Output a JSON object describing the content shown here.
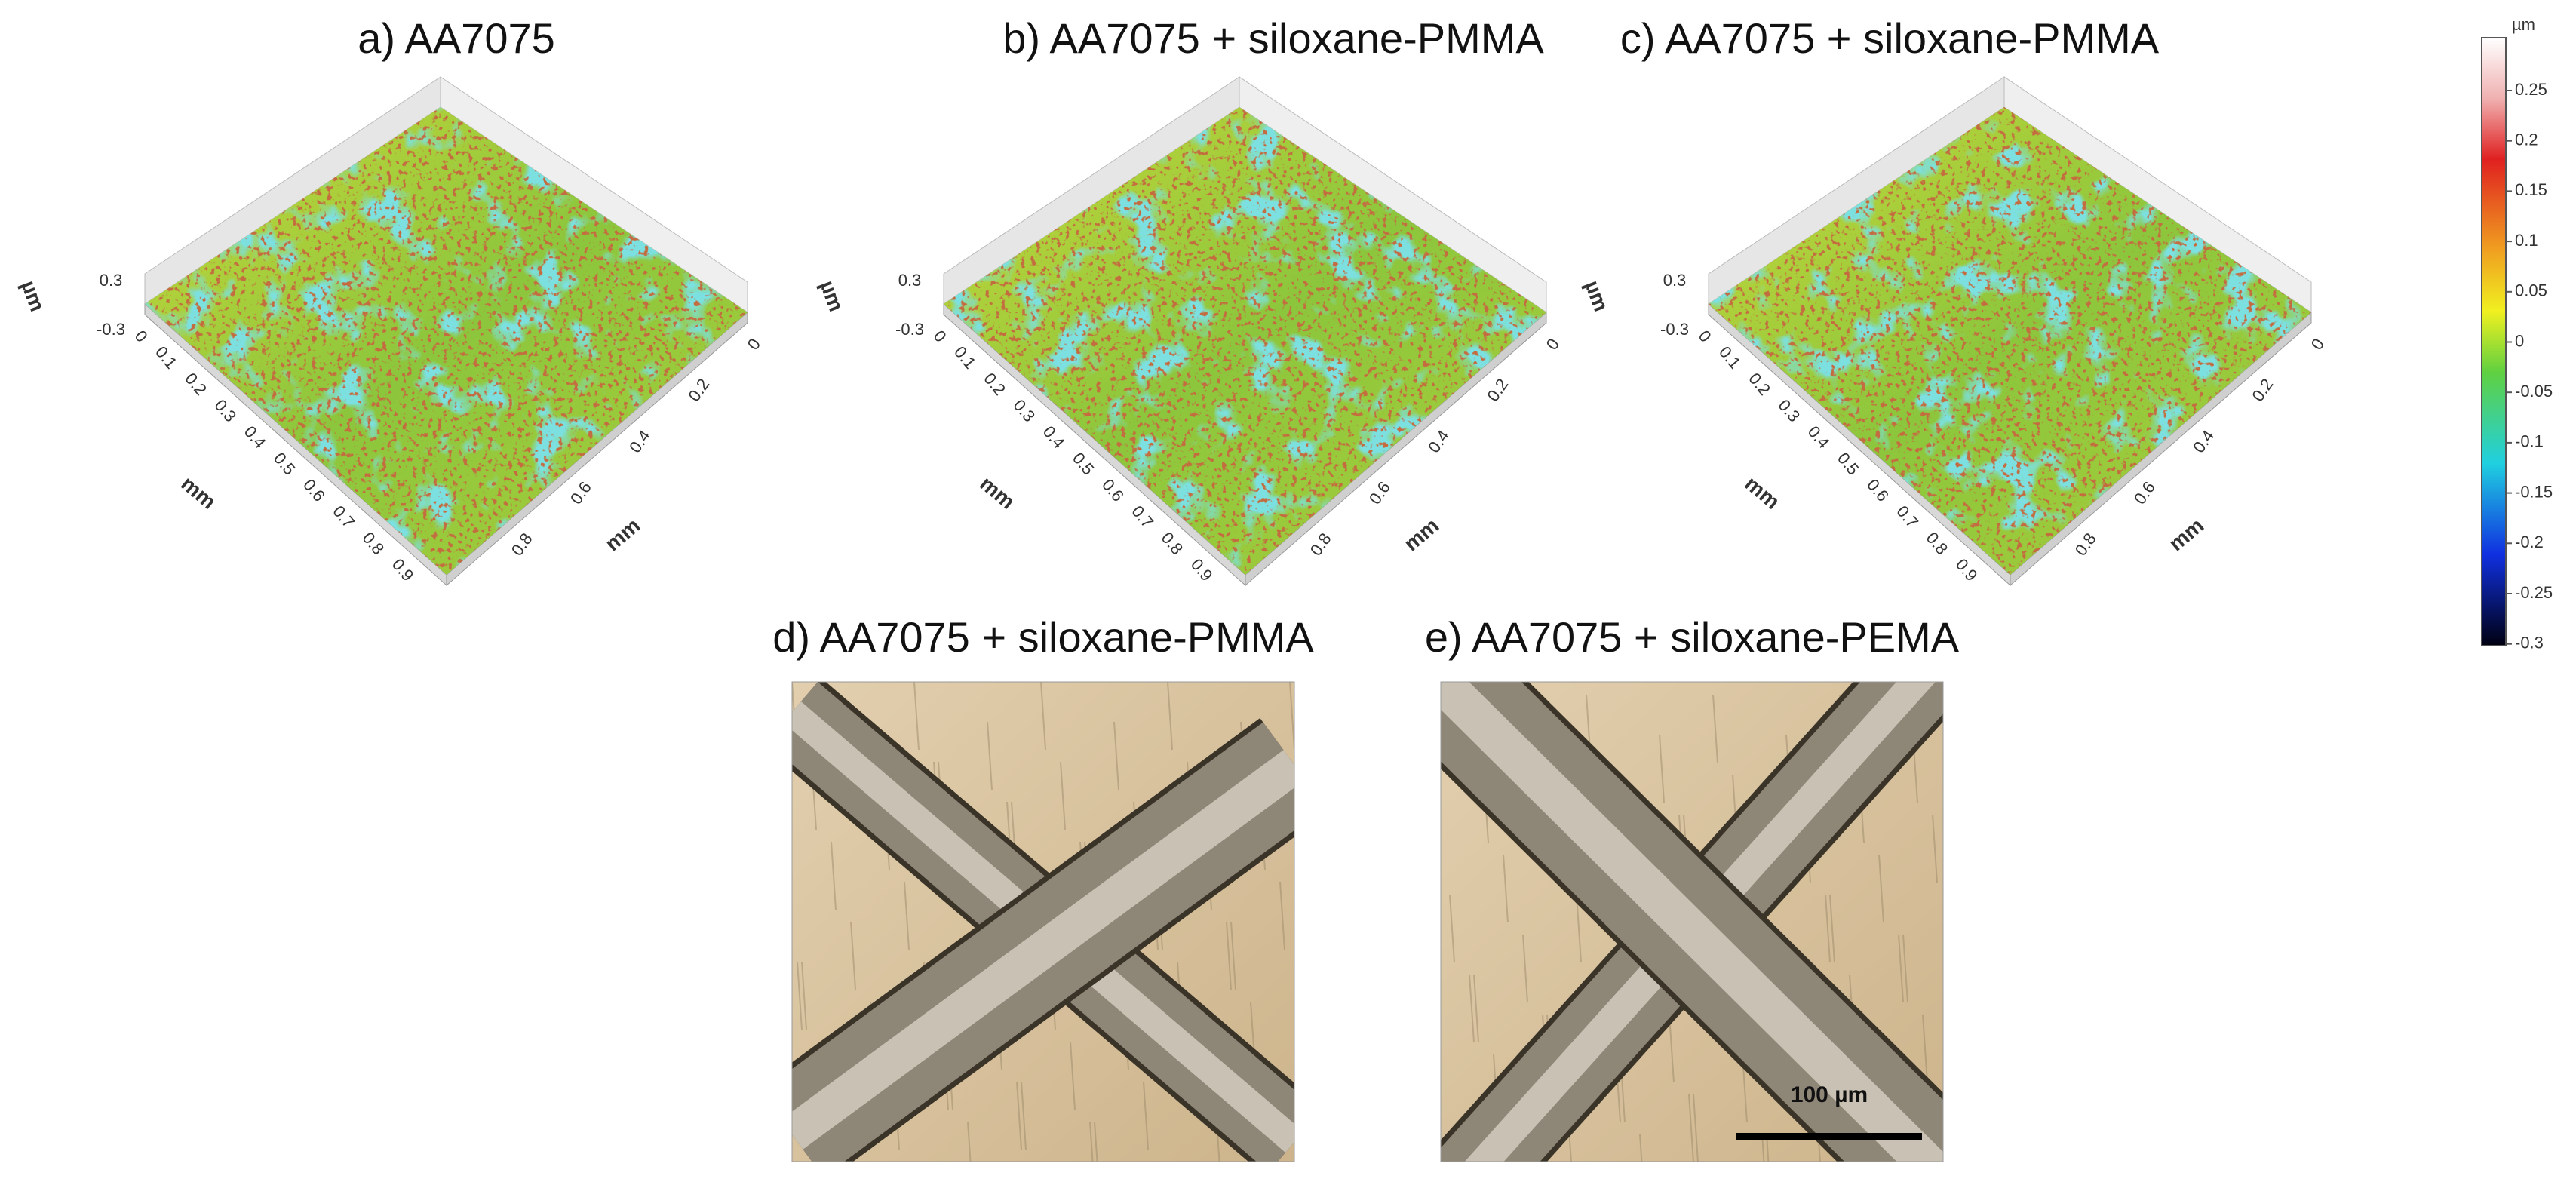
{
  "panels_3d": [
    {
      "title": "a) AA7075",
      "z_label": "µm",
      "z_ticks": [
        0.3,
        -0.3
      ],
      "x_label": "mm",
      "x_ticks": [
        0,
        0.1,
        0.2,
        0.3,
        0.4,
        0.5,
        0.6,
        0.7,
        0.8,
        0.9
      ],
      "y_label": "mm",
      "y_ticks": [
        0,
        0.2,
        0.4,
        0.6,
        0.8
      ]
    },
    {
      "title": "b) AA7075 + siloxane-PMMA",
      "z_label": "µm",
      "z_ticks": [
        0.3,
        -0.3
      ],
      "x_label": "mm",
      "x_ticks": [
        0,
        0.1,
        0.2,
        0.3,
        0.4,
        0.5,
        0.6,
        0.7,
        0.8,
        0.9
      ],
      "y_label": "mm",
      "y_ticks": [
        0,
        0.2,
        0.4,
        0.6,
        0.8
      ]
    },
    {
      "title": "c) AA7075 + siloxane-PMMA",
      "z_label": "µm",
      "z_ticks": [
        0.3,
        -0.3
      ],
      "x_label": "mm",
      "x_ticks": [
        0,
        0.1,
        0.2,
        0.3,
        0.4,
        0.5,
        0.6,
        0.7,
        0.8,
        0.9
      ],
      "y_label": "mm",
      "y_ticks": [
        0,
        0.2,
        0.4,
        0.6,
        0.8
      ]
    }
  ],
  "colorbar": {
    "unit": "µm",
    "ticks": [
      0.25,
      0.2,
      0.15,
      0.1,
      0.05,
      0,
      -0.05,
      -0.1,
      -0.15,
      -0.2,
      -0.25,
      -0.3
    ]
  },
  "micrographs": [
    {
      "title": "d) AA7075 + siloxane-PMMA"
    },
    {
      "title": "e) AA7075 + siloxane-PEMA",
      "scale_bar": "100 µm"
    }
  ]
}
